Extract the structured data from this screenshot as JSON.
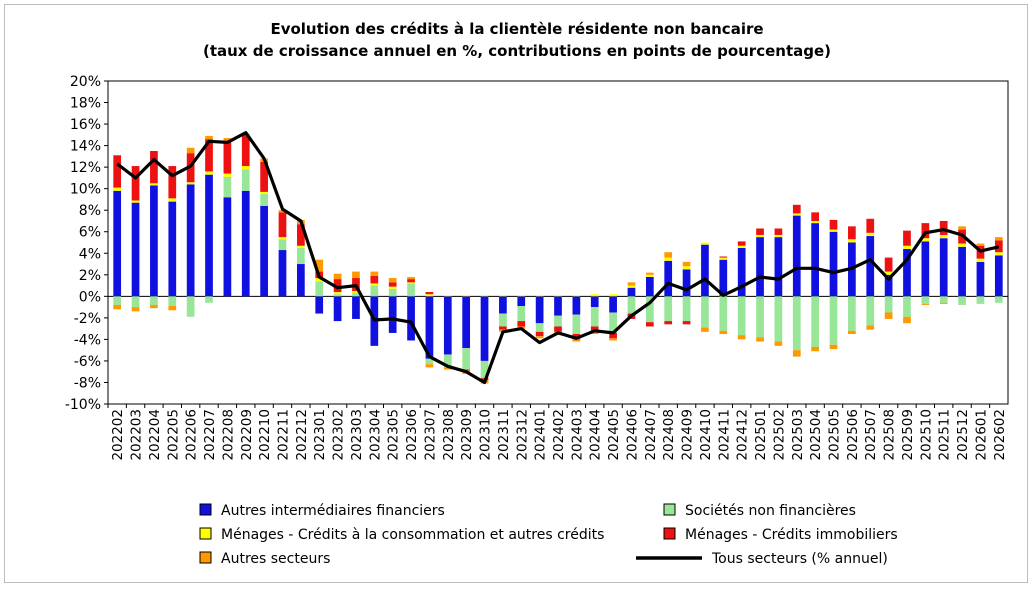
{
  "chart_data": {
    "type": "bar",
    "title": "Evolution des crédits à la clientèle résidente non bancaire",
    "subtitle": "(taux de croissance annuel en %, contributions en points de pourcentage)",
    "ylim": [
      -10,
      20
    ],
    "y_ticks": [
      "20%",
      "18%",
      "16%",
      "14%",
      "12%",
      "10%",
      "8%",
      "6%",
      "4%",
      "2%",
      "0%",
      "-2%",
      "-4%",
      "-6%",
      "-8%",
      "-10%"
    ],
    "categories": [
      "202202",
      "202203",
      "202204",
      "202205",
      "202206",
      "202207",
      "202208",
      "202209",
      "202210",
      "202211",
      "202212",
      "202301",
      "202302",
      "202303",
      "202304",
      "202305",
      "202306",
      "202307",
      "202308",
      "202309",
      "202310",
      "202311",
      "202312",
      "202401",
      "202402",
      "202403",
      "202404",
      "202405",
      "202406",
      "202407",
      "202408",
      "202409",
      "202410",
      "202411",
      "202412",
      "202501",
      "202502",
      "202503",
      "202504",
      "202505",
      "202506",
      "202507",
      "202508",
      "202509",
      "202510",
      "202511",
      "202512",
      "202601",
      "202602"
    ],
    "series": [
      {
        "name": "Autres intermédiaires financiers",
        "color": "#1010e0",
        "values": [
          9.8,
          8.7,
          10.3,
          8.8,
          10.4,
          11.3,
          9.2,
          9.8,
          8.4,
          4.3,
          3.0,
          -1.6,
          -2.3,
          -2.1,
          -4.6,
          -3.4,
          -4.1,
          -5.8,
          -5.4,
          -4.8,
          -6.0,
          -1.6,
          -0.9,
          -2.5,
          -1.8,
          -1.7,
          -1.0,
          -1.5,
          0.8,
          1.8,
          3.3,
          2.5,
          4.8,
          3.4,
          4.5,
          5.5,
          5.5,
          7.5,
          6.8,
          6.0,
          5.0,
          5.6,
          2.0,
          4.4,
          5.1,
          5.4,
          4.6,
          3.2,
          3.8
        ]
      },
      {
        "name": "Sociétés non financières",
        "color": "#99e699",
        "values": [
          -0.8,
          -1.0,
          -0.8,
          -0.9,
          -1.9,
          -0.6,
          1.9,
          2.0,
          1.1,
          1.0,
          1.5,
          1.4,
          0.2,
          0.3,
          1.0,
          0.7,
          1.2,
          -0.5,
          -1.2,
          -2.0,
          -1.6,
          -1.2,
          -1.4,
          -0.8,
          -1.0,
          -1.8,
          -1.8,
          -1.9,
          -1.6,
          -2.4,
          -2.3,
          -2.3,
          -2.9,
          -3.2,
          -3.6,
          -3.8,
          -4.2,
          -5.0,
          -4.7,
          -4.5,
          -3.2,
          -2.7,
          -1.5,
          -1.9,
          -0.7,
          -0.6,
          -0.8,
          -0.7,
          -0.6
        ]
      },
      {
        "name": "Ménages - Crédits à la consommation et autres crédits",
        "color": "#ffff00",
        "values": [
          0.3,
          0.2,
          0.2,
          0.3,
          0.2,
          0.3,
          0.3,
          0.3,
          0.2,
          0.2,
          0.2,
          0.3,
          0.2,
          0.2,
          0.2,
          0.2,
          0.1,
          0.2,
          0.1,
          0.1,
          0.1,
          0.1,
          0.1,
          0.1,
          0.1,
          0.1,
          0.2,
          0.2,
          0.2,
          0.2,
          0.3,
          0.3,
          0.2,
          0.2,
          0.2,
          0.2,
          0.2,
          0.2,
          0.2,
          0.2,
          0.3,
          0.3,
          0.3,
          0.3,
          0.3,
          0.3,
          0.3,
          0.3,
          0.3
        ]
      },
      {
        "name": "Ménages - Crédits immobiliers",
        "color": "#ee1111",
        "values": [
          3.0,
          3.2,
          3.0,
          3.0,
          2.7,
          3.0,
          3.0,
          2.9,
          2.8,
          2.3,
          2.0,
          0.6,
          1.2,
          1.2,
          0.7,
          0.4,
          0.3,
          0.2,
          0.0,
          -0.1,
          -0.2,
          -0.3,
          -0.5,
          -0.4,
          -0.5,
          -0.5,
          -0.5,
          -0.5,
          -0.5,
          -0.4,
          -0.3,
          -0.3,
          0.0,
          0.1,
          0.4,
          0.6,
          0.6,
          0.8,
          0.8,
          0.9,
          1.2,
          1.3,
          1.3,
          1.4,
          1.4,
          1.3,
          1.3,
          1.2,
          1.1
        ]
      },
      {
        "name": "Autres secteurs",
        "color": "#ff9900",
        "values": [
          -0.4,
          -0.4,
          -0.3,
          -0.4,
          0.5,
          0.3,
          0.3,
          0.1,
          0.3,
          0.2,
          0.4,
          1.1,
          0.5,
          0.6,
          0.4,
          0.4,
          0.2,
          -0.3,
          -0.2,
          -0.3,
          -0.3,
          -0.2,
          -0.2,
          -0.2,
          -0.3,
          -0.2,
          -0.2,
          -0.2,
          0.3,
          0.2,
          0.5,
          0.4,
          -0.4,
          -0.3,
          -0.4,
          -0.4,
          -0.4,
          -0.6,
          -0.4,
          -0.4,
          -0.3,
          -0.4,
          -0.6,
          -0.6,
          -0.1,
          -0.1,
          0.3,
          0.2,
          0.3
        ]
      },
      {
        "name": "Tous secteurs (% annuel)",
        "color": "#000000",
        "type": "line",
        "values": [
          12.3,
          11.0,
          12.7,
          11.2,
          12.1,
          14.4,
          14.3,
          15.2,
          12.8,
          8.1,
          7.0,
          1.8,
          0.8,
          1.0,
          -2.2,
          -2.1,
          -2.4,
          -5.6,
          -6.5,
          -7.0,
          -8.0,
          -3.3,
          -3.0,
          -4.3,
          -3.4,
          -3.9,
          -3.2,
          -3.4,
          -1.8,
          -0.6,
          1.2,
          0.6,
          1.6,
          0.1,
          0.9,
          1.8,
          1.6,
          2.6,
          2.6,
          2.2,
          2.6,
          3.4,
          1.6,
          3.4,
          5.9,
          6.2,
          5.7,
          4.2,
          4.6
        ]
      }
    ]
  }
}
